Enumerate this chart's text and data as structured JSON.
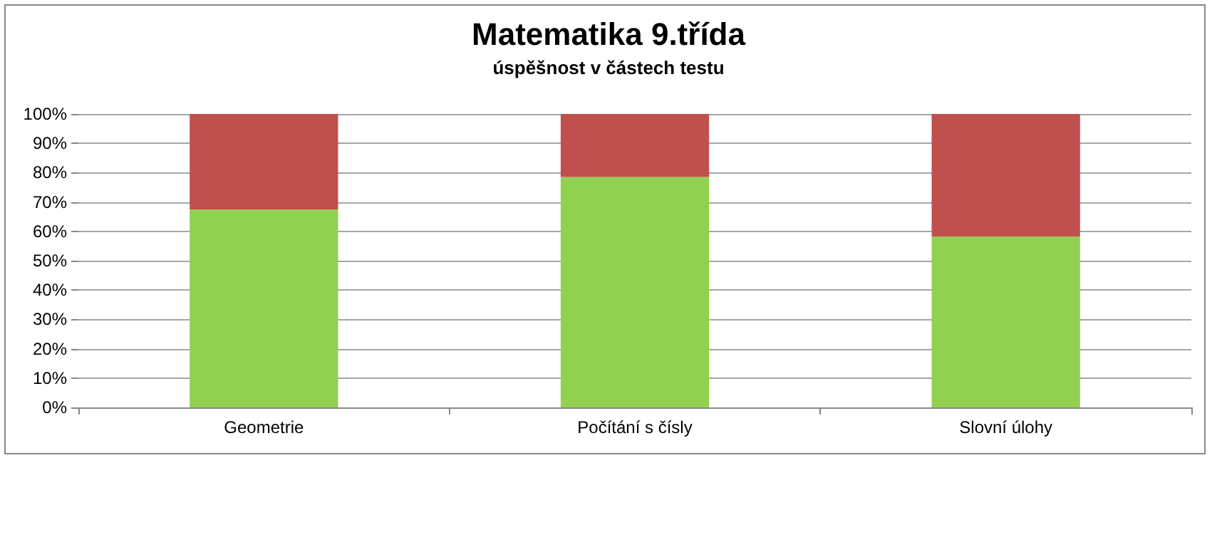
{
  "chart_data": {
    "type": "bar",
    "title": "Matematika 9.třída",
    "subtitle": "úspěšnost v částech testu",
    "categories": [
      "Geometrie",
      "Počítání s čísly",
      "Slovní úlohy"
    ],
    "series": [
      {
        "color": "#92d050",
        "values": [
          67.5,
          78.5,
          58.2
        ]
      },
      {
        "color": "#c0504d",
        "values": [
          32.5,
          21.5,
          41.8
        ]
      }
    ],
    "stacked": true,
    "ylim": [
      0,
      100
    ],
    "yticks": [
      {
        "value": 0,
        "label": "0%"
      },
      {
        "value": 10,
        "label": "10%"
      },
      {
        "value": 20,
        "label": "20%"
      },
      {
        "value": 30,
        "label": "30%"
      },
      {
        "value": 40,
        "label": "40%"
      },
      {
        "value": 50,
        "label": "50%"
      },
      {
        "value": 60,
        "label": "60%"
      },
      {
        "value": 70,
        "label": "70%"
      },
      {
        "value": 80,
        "label": "80%"
      },
      {
        "value": 90,
        "label": "90%"
      },
      {
        "value": 100,
        "label": "100%"
      }
    ],
    "grid": "y"
  }
}
